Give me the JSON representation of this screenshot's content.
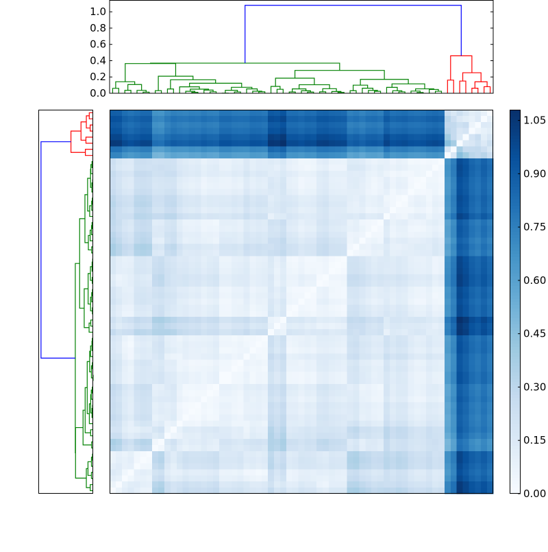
{
  "chart_data": {
    "type": "heatmap",
    "subtype": "clustered distance matrix with row and column dendrograms",
    "linkage": "complete",
    "n_leaves": 63,
    "clusters": [
      {
        "color": "#008000",
        "size": 55,
        "link_height": 0.37
      },
      {
        "color": "#ff0000",
        "size": 8,
        "link_height": 0.46
      }
    ],
    "root_link": {
      "color": "#0000ff",
      "height": 1.08
    },
    "colormap": "Blues",
    "colormap_stops": [
      "#f7fbff",
      "#deebf7",
      "#c6dbef",
      "#9ecae1",
      "#6baed6",
      "#4292c6",
      "#2171b5",
      "#08519c",
      "#08306b"
    ],
    "value_range": [
      0,
      1.08
    ],
    "top_dendrogram": {
      "ylim": [
        0,
        1.145
      ],
      "yticks": [
        0.0,
        0.2,
        0.4,
        0.6,
        0.8,
        1.0
      ],
      "ytick_labels": [
        "0.0",
        "0.2",
        "0.4",
        "0.6",
        "0.8",
        "1.0"
      ]
    },
    "left_dendrogram": {
      "xlim": [
        0,
        1.135
      ],
      "orientation": "left"
    },
    "colorbar": {
      "ticks": [
        0.0,
        0.15,
        0.3,
        0.45,
        0.6,
        0.75,
        0.9,
        1.05
      ],
      "tick_labels": [
        "0.00",
        "0.15",
        "0.30",
        "0.45",
        "0.60",
        "0.75",
        "0.90",
        "1.05"
      ]
    },
    "grid": false
  }
}
